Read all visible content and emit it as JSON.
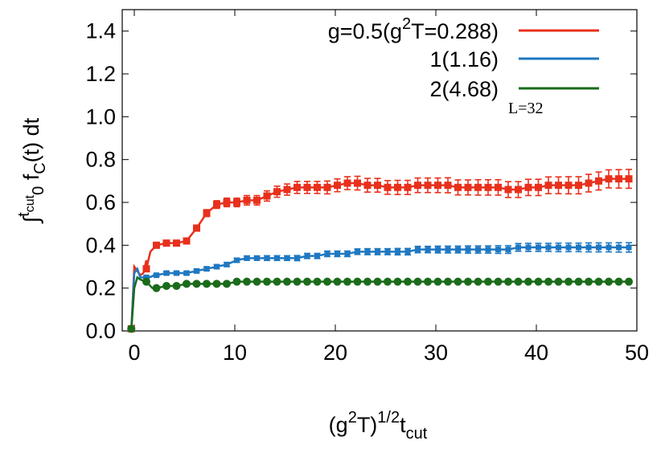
{
  "chart_data": {
    "type": "line",
    "xlabel": {
      "base": "(g",
      "sup1": "2",
      "mid": "T)",
      "sup2": "1/2",
      "t": "t",
      "sub": "cut"
    },
    "ylabel": {
      "integral": "∫",
      "t": "t",
      "sub_cut": "cut",
      "sub_zero": "0",
      "f": " f",
      "sub_c": "C",
      "rest": "(t) dt"
    },
    "xlim": [
      -1.2,
      50
    ],
    "ylim": [
      0,
      1.5
    ],
    "x_ticks": [
      "0",
      "10",
      "20",
      "30",
      "40",
      "50"
    ],
    "x_tick_values": [
      0,
      10,
      20,
      30,
      40,
      50
    ],
    "y_ticks": [
      "0.0",
      "0.2",
      "0.4",
      "0.6",
      "0.8",
      "1.0",
      "1.2",
      "1.4"
    ],
    "y_tick_values": [
      0,
      0.2,
      0.4,
      0.6,
      0.8,
      1.0,
      1.2,
      1.4
    ],
    "annotation": "L=32",
    "legend_position": "top-right",
    "series": [
      {
        "name": "g=0.5(g2T=0.288)",
        "legend_parts": {
          "pre": "g=0.5(g",
          "sup": "2",
          "post": "T=0.288)"
        },
        "color": "#e8301c",
        "marker": "square",
        "error_bars": true,
        "curve": [
          [
            -0.3,
            0.0
          ],
          [
            0,
            0.3
          ],
          [
            0.3,
            0.28
          ],
          [
            0.6,
            0.26
          ],
          [
            0.9,
            0.27
          ],
          [
            1.2,
            0.33
          ],
          [
            1.6,
            0.37
          ],
          [
            2,
            0.39
          ]
        ],
        "x": [
          -0.3,
          1.2,
          2.2,
          3.2,
          4.2,
          5.2,
          6.2,
          7.2,
          8.2,
          9.2,
          10.2,
          11.2,
          12.2,
          13.2,
          14.2,
          15.2,
          16.2,
          17.2,
          18.2,
          19.2,
          20.2,
          21.2,
          22.2,
          23.2,
          24.2,
          25.2,
          26.2,
          27.2,
          28.2,
          29.2,
          30.2,
          31.2,
          32.2,
          33.2,
          34.2,
          35.2,
          36.2,
          37.2,
          38.2,
          39.2,
          40.2,
          41.2,
          42.2,
          43.2,
          44.2,
          45.2,
          46.2,
          47.2,
          48.2,
          49.2
        ],
        "y": [
          0.01,
          0.29,
          0.4,
          0.41,
          0.41,
          0.42,
          0.48,
          0.55,
          0.59,
          0.6,
          0.6,
          0.61,
          0.61,
          0.63,
          0.65,
          0.66,
          0.67,
          0.67,
          0.67,
          0.67,
          0.68,
          0.69,
          0.69,
          0.68,
          0.68,
          0.67,
          0.67,
          0.67,
          0.68,
          0.68,
          0.68,
          0.68,
          0.67,
          0.67,
          0.67,
          0.67,
          0.67,
          0.66,
          0.66,
          0.67,
          0.67,
          0.68,
          0.68,
          0.68,
          0.68,
          0.69,
          0.7,
          0.71,
          0.71,
          0.71
        ],
        "err": [
          0.004,
          0.01,
          0.012,
          0.012,
          0.012,
          0.013,
          0.014,
          0.016,
          0.018,
          0.02,
          0.02,
          0.022,
          0.022,
          0.024,
          0.026,
          0.026,
          0.028,
          0.028,
          0.028,
          0.03,
          0.03,
          0.03,
          0.032,
          0.032,
          0.032,
          0.032,
          0.033,
          0.033,
          0.034,
          0.034,
          0.034,
          0.035,
          0.035,
          0.035,
          0.036,
          0.036,
          0.036,
          0.037,
          0.037,
          0.038,
          0.038,
          0.039,
          0.039,
          0.04,
          0.04,
          0.041,
          0.042,
          0.042,
          0.043,
          0.044
        ]
      },
      {
        "name": "1(1.16)",
        "legend_parts": {
          "pre": "1(1.16)",
          "sup": "",
          "post": ""
        },
        "color": "#1f78c1",
        "marker": "square",
        "error_bars": true,
        "curve": [
          [
            -0.3,
            0.0
          ],
          [
            0,
            0.27
          ],
          [
            0.3,
            0.29
          ],
          [
            0.6,
            0.25
          ],
          [
            1.0,
            0.25
          ],
          [
            1.5,
            0.25
          ],
          [
            2,
            0.26
          ]
        ],
        "x": [
          -0.3,
          1.2,
          2.2,
          3.2,
          4.2,
          5.2,
          6.2,
          7.2,
          8.2,
          9.2,
          10.2,
          11.2,
          12.2,
          13.2,
          14.2,
          15.2,
          16.2,
          17.2,
          18.2,
          19.2,
          20.2,
          21.2,
          22.2,
          23.2,
          24.2,
          25.2,
          26.2,
          27.2,
          28.2,
          29.2,
          30.2,
          31.2,
          32.2,
          33.2,
          34.2,
          35.2,
          36.2,
          37.2,
          38.2,
          39.2,
          40.2,
          41.2,
          42.2,
          43.2,
          44.2,
          45.2,
          46.2,
          47.2,
          48.2,
          49.2
        ],
        "y": [
          0.01,
          0.25,
          0.26,
          0.27,
          0.27,
          0.27,
          0.28,
          0.29,
          0.3,
          0.31,
          0.33,
          0.34,
          0.34,
          0.34,
          0.34,
          0.34,
          0.34,
          0.35,
          0.35,
          0.36,
          0.36,
          0.36,
          0.37,
          0.37,
          0.37,
          0.37,
          0.37,
          0.37,
          0.38,
          0.38,
          0.38,
          0.38,
          0.38,
          0.38,
          0.38,
          0.38,
          0.38,
          0.38,
          0.39,
          0.39,
          0.39,
          0.39,
          0.39,
          0.39,
          0.39,
          0.39,
          0.39,
          0.39,
          0.39,
          0.39
        ],
        "err": [
          0.003,
          0.006,
          0.006,
          0.007,
          0.007,
          0.008,
          0.008,
          0.008,
          0.009,
          0.009,
          0.01,
          0.01,
          0.01,
          0.011,
          0.011,
          0.011,
          0.012,
          0.012,
          0.012,
          0.013,
          0.013,
          0.013,
          0.013,
          0.014,
          0.014,
          0.014,
          0.015,
          0.015,
          0.015,
          0.015,
          0.016,
          0.016,
          0.016,
          0.017,
          0.017,
          0.017,
          0.018,
          0.018,
          0.018,
          0.019,
          0.019,
          0.019,
          0.02,
          0.02,
          0.02,
          0.021,
          0.021,
          0.021,
          0.022,
          0.022
        ]
      },
      {
        "name": "2(4.68)",
        "legend_parts": {
          "pre": "2(4.68)",
          "sup": "",
          "post": ""
        },
        "color": "#1a6b1a",
        "marker": "circle",
        "error_bars": false,
        "curve": [
          [
            -0.3,
            0.0
          ],
          [
            0,
            0.2
          ],
          [
            0.3,
            0.25
          ],
          [
            0.6,
            0.24
          ],
          [
            1.2,
            0.23
          ],
          [
            1.8,
            0.2
          ],
          [
            2.2,
            0.2
          ]
        ],
        "x": [
          -0.3,
          1.2,
          2.2,
          3.2,
          4.2,
          5.2,
          6.2,
          7.2,
          8.2,
          9.2,
          10.2,
          11.2,
          12.2,
          13.2,
          14.2,
          15.2,
          16.2,
          17.2,
          18.2,
          19.2,
          20.2,
          21.2,
          22.2,
          23.2,
          24.2,
          25.2,
          26.2,
          27.2,
          28.2,
          29.2,
          30.2,
          31.2,
          32.2,
          33.2,
          34.2,
          35.2,
          36.2,
          37.2,
          38.2,
          39.2,
          40.2,
          41.2,
          42.2,
          43.2,
          44.2,
          45.2,
          46.2,
          47.2,
          48.2,
          49.2
        ],
        "y": [
          0.01,
          0.23,
          0.2,
          0.21,
          0.21,
          0.22,
          0.22,
          0.22,
          0.22,
          0.22,
          0.23,
          0.23,
          0.23,
          0.23,
          0.23,
          0.23,
          0.23,
          0.23,
          0.23,
          0.23,
          0.23,
          0.23,
          0.23,
          0.23,
          0.23,
          0.23,
          0.23,
          0.23,
          0.23,
          0.23,
          0.23,
          0.23,
          0.23,
          0.23,
          0.23,
          0.23,
          0.23,
          0.23,
          0.23,
          0.23,
          0.23,
          0.23,
          0.23,
          0.23,
          0.23,
          0.23,
          0.23,
          0.23,
          0.23,
          0.23
        ]
      }
    ]
  }
}
